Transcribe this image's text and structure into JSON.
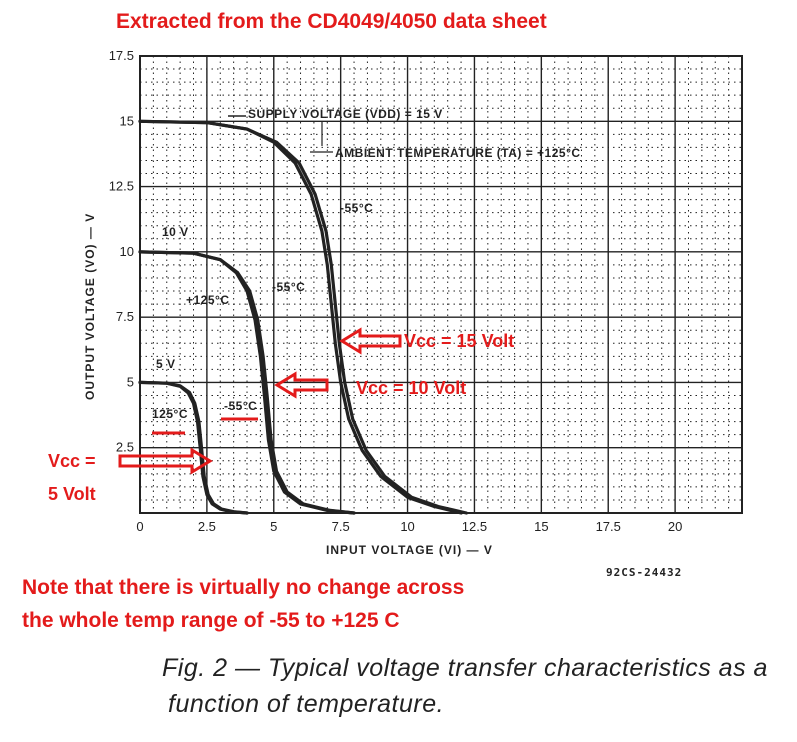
{
  "header": {
    "title": "Extracted from the CD4049/4050 data sheet"
  },
  "note": {
    "line1": "Note that there is virtually no change across",
    "line2": "the whole temp range of -55 to +125 C"
  },
  "caption": {
    "line1": "Fig. 2 — Typical voltage transfer characteristics as a",
    "line2": "function of temperature."
  },
  "figure_ref": "92CS-24432",
  "colors": {
    "annotation": "#e31b1b",
    "curve": "#222222",
    "grid": "#222222"
  },
  "chart_data": {
    "type": "line",
    "title": "",
    "xlabel": "INPUT VOLTAGE (VI) — V",
    "ylabel": "OUTPUT VOLTAGE (VO) — V",
    "xlim": [
      0,
      22.5
    ],
    "ylim": [
      0,
      17.5
    ],
    "x_ticks": [
      "0",
      "2.5",
      "5",
      "7.5",
      "10",
      "12.5",
      "15",
      "17.5",
      "20"
    ],
    "y_ticks": [
      "2.5",
      "5",
      "7.5",
      "10",
      "12.5",
      "15",
      "17.5"
    ],
    "grid": true,
    "series": [
      {
        "name": "5 V, +125°C",
        "supply": 5,
        "temp": "+125°C",
        "x": [
          0,
          1.0,
          1.5,
          1.8,
          2.0,
          2.15,
          2.25,
          2.35,
          2.5,
          2.7,
          3.0,
          3.4,
          4.0
        ],
        "y": [
          5,
          4.97,
          4.85,
          4.6,
          4.2,
          3.5,
          2.5,
          1.4,
          0.7,
          0.35,
          0.15,
          0.05,
          0
        ]
      },
      {
        "name": "5 V, -55°C",
        "supply": 5,
        "temp": "-55°C",
        "x": [
          0,
          1.0,
          1.5,
          1.85,
          2.05,
          2.2,
          2.3,
          2.4,
          2.55,
          2.75,
          3.05,
          3.5,
          4.0
        ],
        "y": [
          5,
          4.97,
          4.87,
          4.62,
          4.2,
          3.5,
          2.5,
          1.4,
          0.7,
          0.35,
          0.15,
          0.05,
          0
        ]
      },
      {
        "name": "10 V, +125°C",
        "supply": 10,
        "temp": "+125°C",
        "x": [
          0,
          2.0,
          3.0,
          3.6,
          4.0,
          4.3,
          4.5,
          4.65,
          4.8,
          5.0,
          5.4,
          6.0,
          7.0,
          8.0
        ],
        "y": [
          10,
          9.95,
          9.7,
          9.2,
          8.5,
          7.4,
          6.0,
          4.5,
          2.8,
          1.6,
          0.8,
          0.35,
          0.1,
          0
        ]
      },
      {
        "name": "10 V, -55°C",
        "supply": 10,
        "temp": "-55°C",
        "x": [
          0,
          2.0,
          3.0,
          3.65,
          4.1,
          4.4,
          4.6,
          4.75,
          4.9,
          5.1,
          5.5,
          6.1,
          7.1,
          8.0
        ],
        "y": [
          10,
          9.95,
          9.7,
          9.2,
          8.5,
          7.4,
          6.0,
          4.5,
          2.8,
          1.6,
          0.8,
          0.35,
          0.1,
          0
        ]
      },
      {
        "name": "15 V, +125°C",
        "supply": 15,
        "temp": "+125°C",
        "x": [
          0,
          2.5,
          4.0,
          5.0,
          5.8,
          6.4,
          6.8,
          7.0,
          7.15,
          7.3,
          7.5,
          7.8,
          8.3,
          9.0,
          10.0,
          11.0,
          12.0
        ],
        "y": [
          15,
          14.95,
          14.7,
          14.2,
          13.4,
          12.2,
          10.8,
          9.5,
          8.0,
          6.5,
          5.0,
          3.6,
          2.4,
          1.4,
          0.6,
          0.25,
          0
        ]
      },
      {
        "name": "15 V, -55°C",
        "supply": 15,
        "temp": "-55°C",
        "x": [
          0,
          2.5,
          4.0,
          5.1,
          5.95,
          6.55,
          6.95,
          7.15,
          7.3,
          7.45,
          7.65,
          7.95,
          8.45,
          9.15,
          10.15,
          11.15,
          12.2
        ],
        "y": [
          15,
          14.95,
          14.7,
          14.2,
          13.4,
          12.2,
          10.8,
          9.5,
          8.0,
          6.5,
          5.0,
          3.6,
          2.4,
          1.4,
          0.6,
          0.25,
          0
        ]
      }
    ],
    "annotations": [
      {
        "text": "SUPPLY VOLTAGE (VDD) = 15 V"
      },
      {
        "text": "AMBIENT TEMPERATURE (TA) = +125°C"
      },
      {
        "text": "-55°C"
      },
      {
        "text": "10 V"
      },
      {
        "text": "-55°C"
      },
      {
        "text": "+125°C"
      },
      {
        "text": "5 V"
      },
      {
        "text": "125°C"
      },
      {
        "text": "-55°C"
      }
    ],
    "red_annotations": [
      {
        "text": "Vcc = 15 Volt"
      },
      {
        "text": "Vcc = 10 Volt"
      },
      {
        "text": "Vcc ="
      },
      {
        "text": "5 Volt"
      }
    ]
  }
}
